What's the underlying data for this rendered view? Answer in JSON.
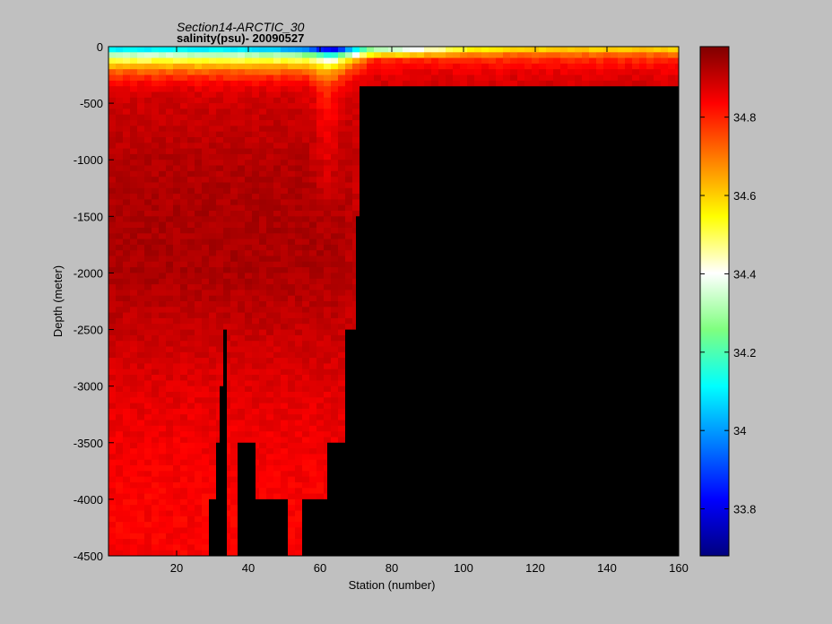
{
  "chart_data": {
    "type": "heatmap",
    "title": "Section14-ARCTIC_30",
    "subtitle": "salinity(psu)- 20090527",
    "xlabel": "Station (number)",
    "ylabel": "Depth (meter)",
    "xlim": [
      1,
      160
    ],
    "ylim": [
      -4500,
      0
    ],
    "x_ticks": [
      20,
      40,
      60,
      80,
      100,
      120,
      140,
      160
    ],
    "x_tick_labels": [
      "20",
      "40",
      "60",
      "80",
      "100",
      "120",
      "140",
      "160"
    ],
    "y_ticks": [
      0,
      -500,
      -1000,
      -1500,
      -2000,
      -2500,
      -3000,
      -3500,
      -4000,
      -4500
    ],
    "y_tick_labels": [
      "0",
      "-500",
      "-1000",
      "-1500",
      "-2000",
      "-2500",
      "-3000",
      "-3500",
      "-4000",
      "-4500"
    ],
    "colorbar": {
      "min": 33.68,
      "max": 34.98,
      "ticks": [
        33.8,
        34.0,
        34.2,
        34.4,
        34.6,
        34.8
      ],
      "tick_labels": [
        "33.8",
        "34",
        "34.2",
        "34.4",
        "34.6",
        "34.8"
      ],
      "colormap": "jet"
    },
    "grid": false,
    "mask_color": "#000000",
    "colormap_stops": [
      "#00007f",
      "#0000ff",
      "#007fff",
      "#00ffff",
      "#7fff7f",
      "#ffffff",
      "#ffff00",
      "#ff7f00",
      "#ff0000",
      "#7f0000"
    ],
    "bottom_depth_profile": {
      "station": [
        1,
        28,
        29,
        31,
        32,
        33,
        34,
        36,
        37,
        41,
        42,
        50,
        51,
        54,
        55,
        62,
        63,
        67,
        68,
        70,
        71,
        160
      ],
      "depth": [
        -4500,
        -4500,
        -4000,
        -3500,
        -3000,
        -2500,
        -4500,
        -4500,
        -3500,
        -3500,
        -4000,
        -4000,
        -4500,
        -4500,
        -4000,
        -3500,
        -3500,
        -2500,
        -2500,
        -1500,
        -350,
        -350
      ]
    },
    "salinity_layers": {
      "depth": [
        0,
        -100,
        -200,
        -300,
        -400,
        -600,
        -1000,
        -1500,
        -2000,
        -2500,
        -3000,
        -3500,
        -4000,
        -4500
      ],
      "west_basin": [
        34.0,
        34.45,
        34.7,
        34.82,
        34.88,
        34.9,
        34.92,
        34.93,
        34.93,
        34.9,
        34.87,
        34.85,
        34.84,
        34.84
      ],
      "shelf_east": [
        34.55,
        34.78,
        34.85,
        34.88,
        34.88,
        34.88,
        34.88,
        34.88,
        34.88,
        34.88,
        34.88,
        34.88,
        34.88,
        34.88
      ]
    }
  }
}
